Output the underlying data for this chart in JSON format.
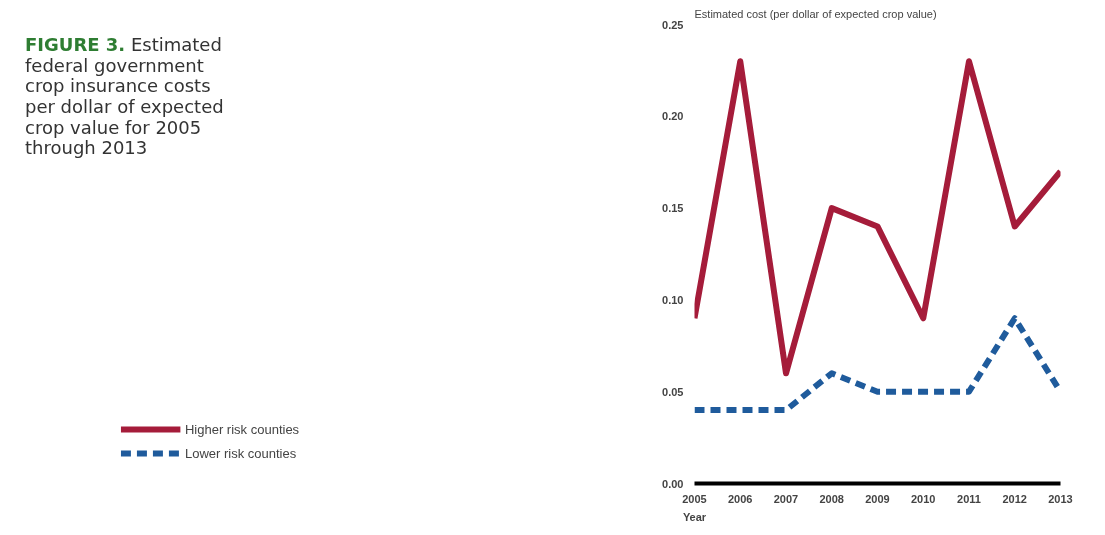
{
  "chart_data": {
    "type": "line",
    "title": "FIGURE 3.",
    "subtitle": "Estimated federal government crop insurance costs per dollar of expected crop value for 2005 through 2013",
    "ylabel": "Estimated cost (per dollar of expected crop value)",
    "xlabel": "Year",
    "x": [
      2005,
      2006,
      2007,
      2008,
      2009,
      2010,
      2011,
      2012,
      2013
    ],
    "xlim": [
      2005,
      2013
    ],
    "xticks": [
      2005,
      2006,
      2007,
      2008,
      2009,
      2010,
      2011,
      2012,
      2013
    ],
    "ylim": [
      0,
      0.25
    ],
    "yticks": [
      {
        "value": 0,
        "label": "0.00"
      },
      {
        "value": 0.05,
        "label": "0.05"
      },
      {
        "value": 0.1,
        "label": "0.10"
      },
      {
        "value": 0.15,
        "label": "0.15"
      },
      {
        "value": 0.2,
        "label": "0.20"
      },
      {
        "value": 0.25,
        "label": "0.25"
      }
    ],
    "grid": false,
    "legend": "bottom left",
    "series": [
      {
        "name": "Higher risk counties",
        "color": "#a51c3a",
        "line_style": "solid",
        "values": [
          0.09,
          0.23,
          0.06,
          0.15,
          0.14,
          0.09,
          0.23,
          0.14,
          0.17
        ]
      },
      {
        "name": "Lower risk counties",
        "color": "#1f5b9c",
        "line_style": "dashed",
        "values": [
          0.04,
          0.04,
          0.04,
          0.06,
          0.05,
          0.05,
          0.05,
          0.09,
          0.05
        ]
      }
    ]
  }
}
